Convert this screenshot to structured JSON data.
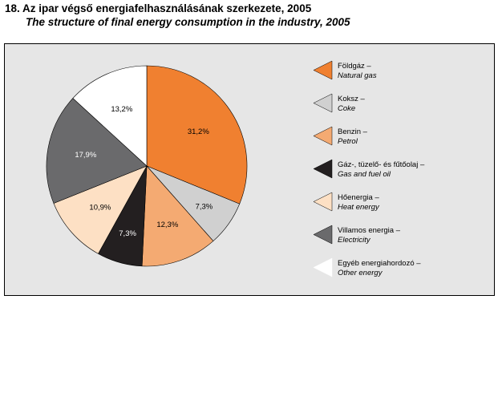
{
  "header": {
    "title_hu": "18. Az ipar végső energiafelhasználásának szerkezete, 2005",
    "title_en": "The structure of final energy consumption in the industry, 2005"
  },
  "chart_data": {
    "type": "pie",
    "title": "18. Az ipar végső energiafelhasználásának szerkezete, 2005",
    "subtitle": "The structure of final energy consumption in the industry, 2005",
    "legend_position": "right",
    "slices": [
      {
        "label_hu": "Földgáz –",
        "label_en": "Natural gas",
        "value": 31.2,
        "value_label": "31,2%",
        "color": "#f08030",
        "label_color": "#000000"
      },
      {
        "label_hu": "Koksz –",
        "label_en": "Coke",
        "value": 7.3,
        "value_label": "7,3%",
        "color": "#d0d0d0",
        "label_color": "#000000"
      },
      {
        "label_hu": "Benzin –",
        "label_en": "Petrol",
        "value": 12.3,
        "value_label": "12,3%",
        "color": "#f4aa72",
        "label_color": "#000000"
      },
      {
        "label_hu": "Gáz-, tüzelő- és fűtőolaj –",
        "label_en": "Gas and fuel oil",
        "value": 7.3,
        "value_label": "7,3%",
        "color": "#231f20",
        "label_color": "#ffffff"
      },
      {
        "label_hu": "Hőenergia –",
        "label_en": "Heat energy",
        "value": 10.9,
        "value_label": "10,9%",
        "color": "#fde0c4",
        "label_color": "#000000"
      },
      {
        "label_hu": "Villamos energia –",
        "label_en": "Electricity",
        "value": 17.9,
        "value_label": "17,9%",
        "color": "#6a6a6c",
        "label_color": "#ffffff"
      },
      {
        "label_hu": "Egyéb energiahordozó –",
        "label_en": "Other energy",
        "value": 13.2,
        "value_label": "13,2%",
        "color": "#ffffff",
        "label_color": "#000000"
      }
    ]
  }
}
